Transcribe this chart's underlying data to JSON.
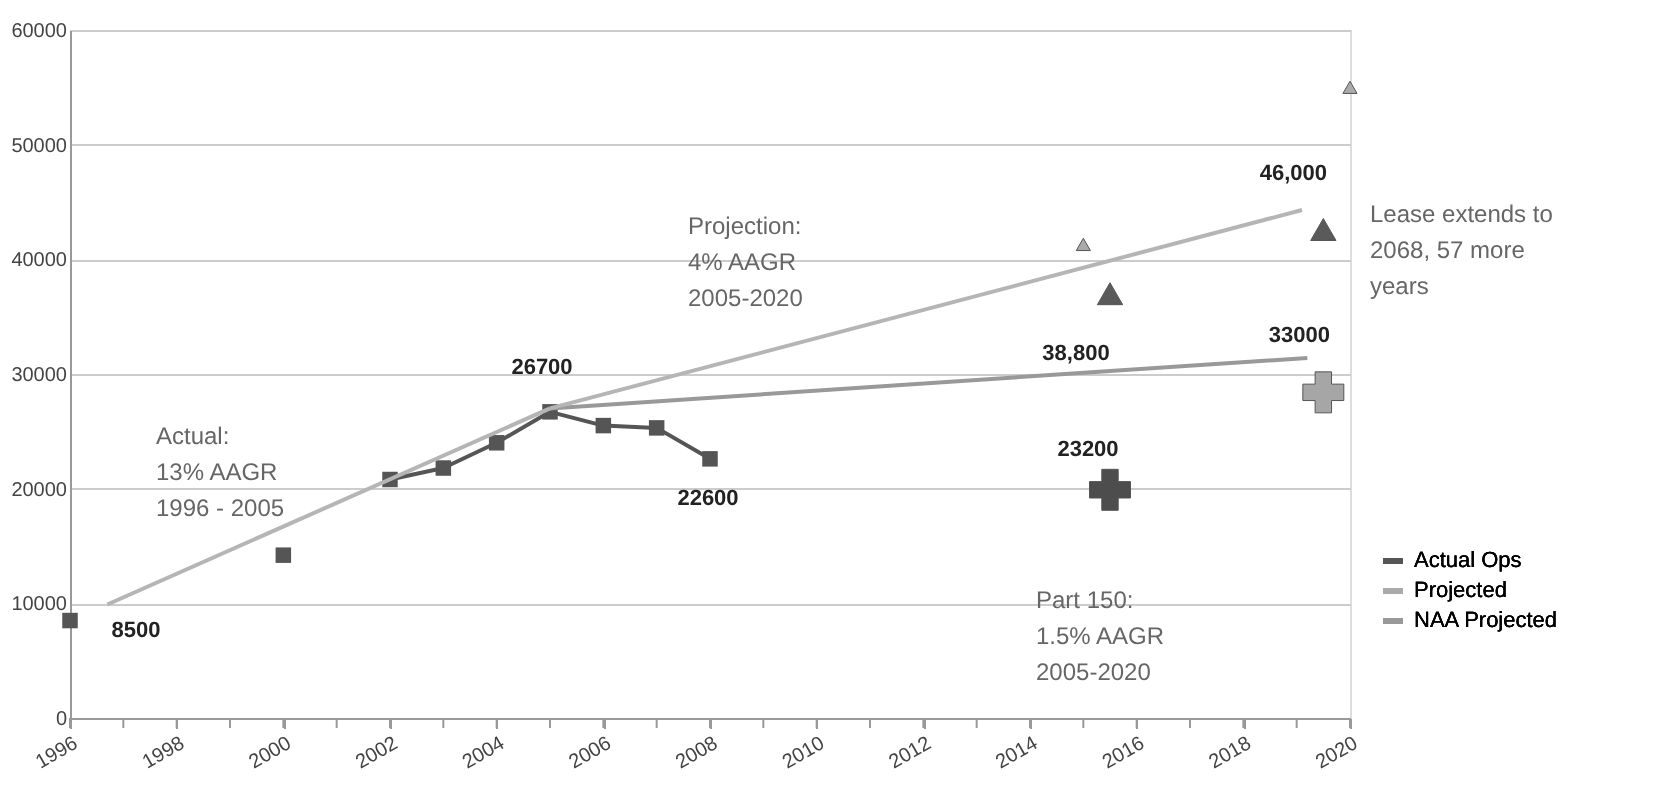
{
  "chart_data": {
    "type": "line",
    "xlim": [
      1996,
      2020
    ],
    "xticks": [
      1996,
      {
        "value": 1997,
        "label": null
      },
      1998,
      {
        "value": 1999,
        "label": null
      },
      2000,
      {
        "value": 2001,
        "label": null
      },
      2002,
      {
        "value": 2003,
        "label": null
      },
      2004,
      {
        "value": 2005,
        "label": null
      },
      2006,
      {
        "value": 2007,
        "label": null
      },
      2008,
      {
        "value": 2009,
        "label": null
      },
      2010,
      {
        "value": 2011,
        "label": null
      },
      2012,
      {
        "value": 2013,
        "label": null
      },
      2014,
      {
        "value": 2015,
        "label": null
      },
      2016,
      {
        "value": 2017,
        "label": null
      },
      2018,
      {
        "value": 2019,
        "label": null
      },
      2020
    ],
    "ylim": [
      0,
      60000
    ],
    "yticks": [
      0,
      10000,
      20000,
      30000,
      40000,
      50000,
      60000
    ],
    "grid": "y",
    "legend": "bottom right",
    "series": [
      {
        "name": "Actual Ops",
        "marker": "square",
        "color": "#555555",
        "x": [
          1996,
          1997,
          1998,
          1999,
          2000,
          2001,
          2002,
          2003,
          2004,
          2005,
          2006,
          2007,
          2008
        ],
        "values": [
          8500,
          null,
          null,
          null,
          14200,
          null,
          20800,
          21800,
          24000,
          26700,
          25500,
          25300,
          22600
        ]
      },
      {
        "name": "Projected",
        "type": "scatter",
        "marker": "triangle",
        "color": "#aaaaaa",
        "x": [
          2015,
          2020
        ],
        "values": [
          41300,
          55000
        ]
      },
      {
        "name": "NAA Projected",
        "marker": "none",
        "color": "#999999",
        "x": [
          2005,
          2019.2
        ],
        "values": [
          27000,
          31400
        ]
      },
      {
        "marker": "none",
        "color": "#b5b5b5",
        "x": [
          1996.7,
          2005
        ],
        "values": [
          9900,
          27000
        ]
      },
      {
        "marker": "none",
        "color": "#b5b5b5",
        "x": [
          2005,
          2019.1
        ],
        "values": [
          27000,
          44300
        ]
      },
      {
        "type": "scatter",
        "marker": "triangle",
        "color": "#5a5a5a",
        "x": [
          2015.5,
          2019.5
        ],
        "values": [
          37000,
          42600
        ]
      },
      {
        "type": "scatter",
        "marker": "cross",
        "colors": [
          "#4d4d4d",
          "#a6a6a6"
        ],
        "x": [
          2015.5,
          2019.5
        ],
        "values": [
          19900,
          28400
        ]
      }
    ],
    "annotations": [
      {
        "text": "8500",
        "x": 1996,
        "y": 8500
      },
      {
        "text": "26700",
        "x": 2005,
        "y": 26700
      },
      {
        "text": "22600",
        "x": 2008,
        "y": 22600
      },
      {
        "text": "46,000",
        "x": 2019.5,
        "y": 42600
      },
      {
        "text": "38,800",
        "x": 2015.5,
        "y": 37000
      },
      {
        "text": "33000",
        "x": 2019.5,
        "y": 28400
      },
      {
        "text": "23200",
        "x": 2015.5,
        "y": 19900
      },
      "Actual:\n13% AAGR\n1996 - 2005",
      "Projection:\n4% AAGR\n2005-2020",
      "Part 150:\n1.5% AAGR\n2005-2020",
      "Lease extends to\n2068, 57 more\nyears"
    ]
  }
}
